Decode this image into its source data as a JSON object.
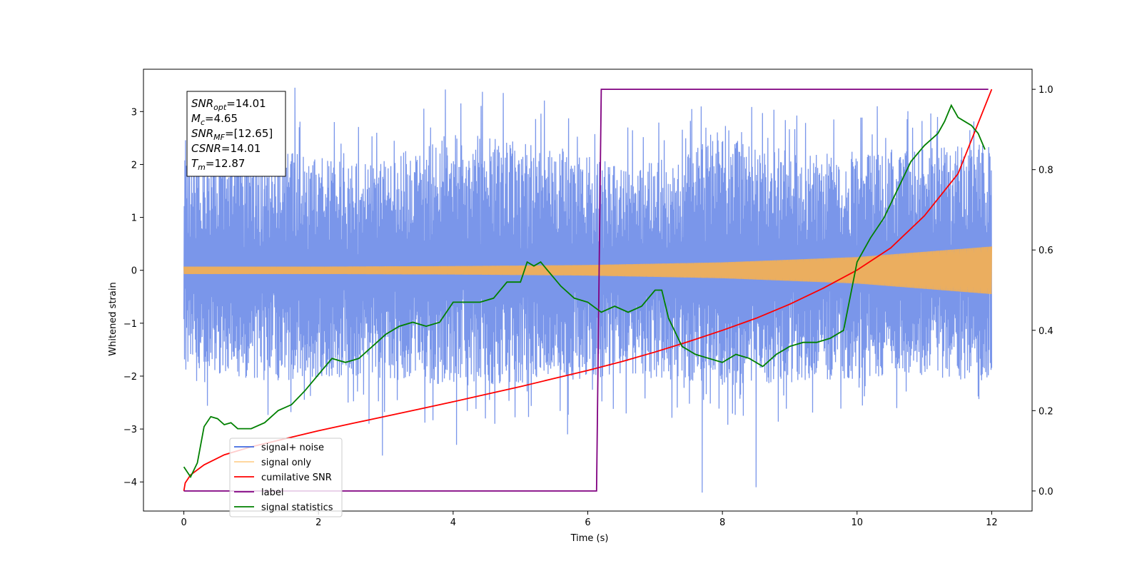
{
  "chart_data": {
    "type": "line",
    "xlabel": "Time (s)",
    "ylabel": "Whitened strain",
    "xlim": [
      -0.6,
      12.6
    ],
    "ylim": [
      -4.55,
      3.8
    ],
    "y2lim": [
      -0.05,
      1.05
    ],
    "x_ticks": [
      "0",
      "2",
      "4",
      "6",
      "8",
      "10",
      "12"
    ],
    "y_ticks": [
      "−4",
      "−3",
      "−2",
      "−1",
      "0",
      "1",
      "2",
      "3"
    ],
    "y2_ticks": [
      "0.0",
      "0.2",
      "0.4",
      "0.6",
      "0.8",
      "1.0"
    ],
    "grid": false,
    "legend_position": "lower-left",
    "stats_box": [
      {
        "base": "SNR",
        "sub": "opt",
        "value": "=14.01"
      },
      {
        "base": "M",
        "sub": "c",
        "value": "=4.65"
      },
      {
        "base": "SNR",
        "sub": "MF",
        "value": "=[12.65]"
      },
      {
        "base": "CSNR",
        "sub": "",
        "value": "=14.01"
      },
      {
        "base": "T",
        "sub": "m",
        "value": "=12.87"
      }
    ],
    "series": [
      {
        "name": "signal+ noise",
        "color": "#4169E1",
        "axis": "left",
        "x_range": [
          0,
          12
        ],
        "band_upper": [
          2.1,
          2.3,
          2.0,
          2.6,
          2.4,
          2.0,
          2.5,
          2.2,
          2.3,
          2.4
        ],
        "band_lower": [
          -1.9,
          -2.1,
          -2.0,
          -2.2,
          -2.1,
          -2.0,
          -2.2,
          -2.1,
          -2.0,
          -2.1
        ],
        "peaks": [
          [
            1.2,
            3.2
          ],
          [
            1.65,
            3.45
          ],
          [
            2.75,
            -2.9
          ],
          [
            2.95,
            -3.5
          ],
          [
            4.05,
            -3.3
          ],
          [
            5.7,
            -3.1
          ],
          [
            7.7,
            -4.2
          ],
          [
            8.5,
            -4.1
          ],
          [
            10.3,
            3.1
          ]
        ]
      },
      {
        "name": "signal only",
        "color": "#FFB347",
        "axis": "left",
        "x": [
          0,
          2,
          4,
          6,
          8,
          10,
          12
        ],
        "amplitude": [
          0.07,
          0.07,
          0.08,
          0.1,
          0.15,
          0.25,
          0.45
        ]
      },
      {
        "name": "cumilative SNR",
        "color": "#FF0000",
        "axis": "right",
        "x": [
          0,
          0.02,
          0.1,
          0.3,
          0.6,
          1,
          1.5,
          2,
          2.5,
          3,
          3.5,
          4,
          4.5,
          5,
          5.5,
          6,
          6.5,
          7,
          7.5,
          8,
          8.5,
          9,
          9.5,
          10,
          10.5,
          11,
          11.5,
          12
        ],
        "y": [
          0.0,
          0.02,
          0.04,
          0.065,
          0.09,
          0.11,
          0.13,
          0.15,
          0.168,
          0.186,
          0.204,
          0.222,
          0.241,
          0.26,
          0.28,
          0.3,
          0.322,
          0.346,
          0.372,
          0.4,
          0.43,
          0.465,
          0.505,
          0.55,
          0.605,
          0.685,
          0.79,
          1.0
        ]
      },
      {
        "name": "label",
        "color": "#800080",
        "axis": "right",
        "x": [
          0,
          6.13,
          6.2,
          11.95
        ],
        "y": [
          0,
          0,
          1,
          1
        ]
      },
      {
        "name": "signal statistics",
        "color": "#008000",
        "axis": "right",
        "x": [
          0,
          0.1,
          0.2,
          0.3,
          0.4,
          0.5,
          0.6,
          0.7,
          0.8,
          1.0,
          1.2,
          1.4,
          1.6,
          1.8,
          2.0,
          2.2,
          2.4,
          2.6,
          2.8,
          3.0,
          3.2,
          3.4,
          3.6,
          3.8,
          4.0,
          4.2,
          4.4,
          4.6,
          4.8,
          5.0,
          5.1,
          5.2,
          5.3,
          5.4,
          5.6,
          5.8,
          6.0,
          6.2,
          6.4,
          6.6,
          6.8,
          7.0,
          7.1,
          7.2,
          7.4,
          7.6,
          7.8,
          8.0,
          8.2,
          8.4,
          8.6,
          8.8,
          9.0,
          9.2,
          9.4,
          9.6,
          9.8,
          10.0,
          10.2,
          10.4,
          10.6,
          10.8,
          11.0,
          11.2,
          11.3,
          11.4,
          11.5,
          11.6,
          11.7,
          11.8,
          11.9
        ],
        "y": [
          0.06,
          0.035,
          0.07,
          0.16,
          0.185,
          0.18,
          0.165,
          0.17,
          0.155,
          0.155,
          0.17,
          0.2,
          0.215,
          0.25,
          0.29,
          0.33,
          0.32,
          0.33,
          0.36,
          0.39,
          0.41,
          0.42,
          0.41,
          0.42,
          0.47,
          0.47,
          0.47,
          0.48,
          0.52,
          0.52,
          0.57,
          0.56,
          0.57,
          0.55,
          0.51,
          0.48,
          0.47,
          0.445,
          0.46,
          0.445,
          0.46,
          0.5,
          0.5,
          0.43,
          0.36,
          0.34,
          0.33,
          0.32,
          0.34,
          0.33,
          0.31,
          0.34,
          0.36,
          0.37,
          0.37,
          0.38,
          0.4,
          0.57,
          0.63,
          0.68,
          0.75,
          0.82,
          0.86,
          0.89,
          0.92,
          0.96,
          0.93,
          0.92,
          0.91,
          0.89,
          0.85
        ]
      }
    ]
  }
}
